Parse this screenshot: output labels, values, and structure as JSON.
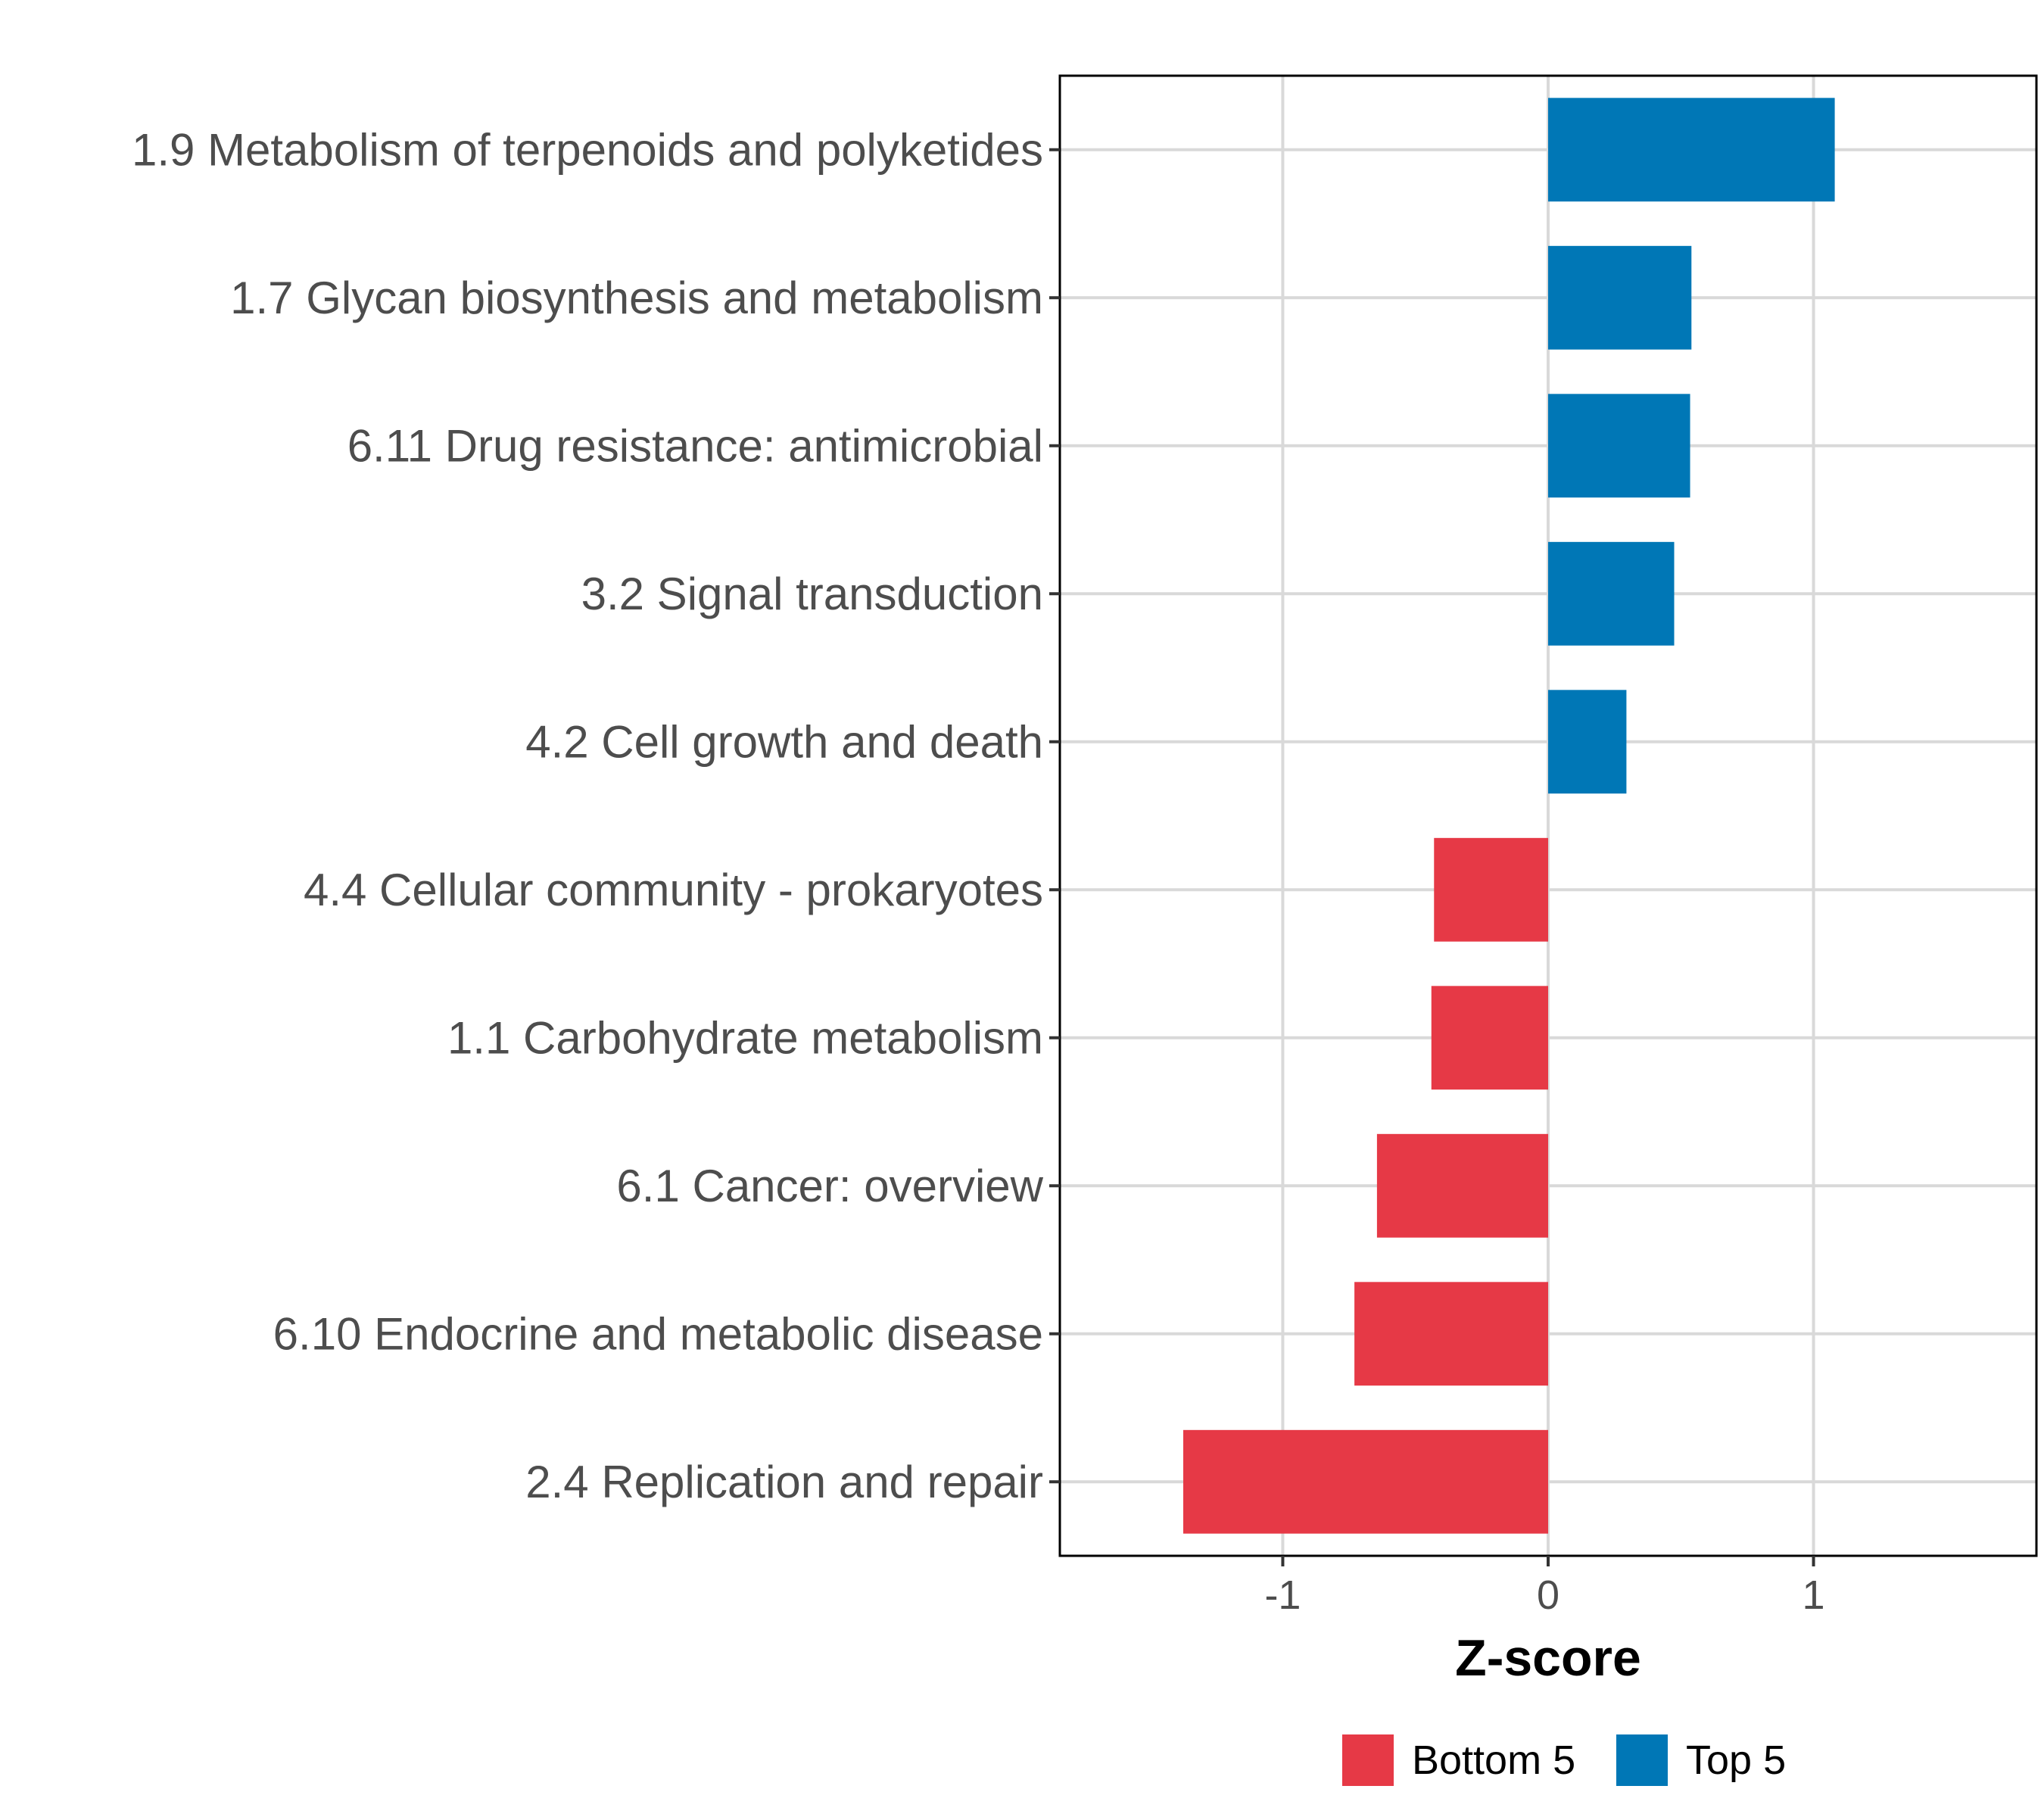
{
  "chart_data": {
    "type": "bar",
    "orientation": "horizontal",
    "title": "",
    "xlabel": "Z-score",
    "ylabel": "",
    "xlim": [
      -1.84,
      1.84
    ],
    "xticks": [
      -1,
      0,
      1
    ],
    "xtick_labels": [
      "-1",
      "0",
      "1"
    ],
    "grid": true,
    "categories": [
      "1.9 Metabolism of terpenoids and polyketides",
      "1.7 Glycan biosynthesis and metabolism",
      "6.11 Drug resistance: antimicrobial",
      "3.2 Signal transduction",
      "4.2 Cell growth and death",
      "4.4 Cellular community - prokaryotes",
      "1.1 Carbohydrate metabolism",
      "6.1 Cancer: overview",
      "6.10 Endocrine and metabolic disease",
      "2.4 Replication and repair"
    ],
    "values": [
      1.08,
      0.54,
      0.535,
      0.475,
      0.295,
      -0.43,
      -0.44,
      -0.645,
      -0.73,
      -1.375
    ],
    "groups": [
      "Top 5",
      "Top 5",
      "Top 5",
      "Top 5",
      "Top 5",
      "Bottom 5",
      "Bottom 5",
      "Bottom 5",
      "Bottom 5",
      "Bottom 5"
    ],
    "legend": {
      "position": "bottom",
      "items": [
        {
          "label": "Bottom 5",
          "color": "#e63946"
        },
        {
          "label": "Top 5",
          "color": "#0077b6"
        }
      ]
    }
  }
}
